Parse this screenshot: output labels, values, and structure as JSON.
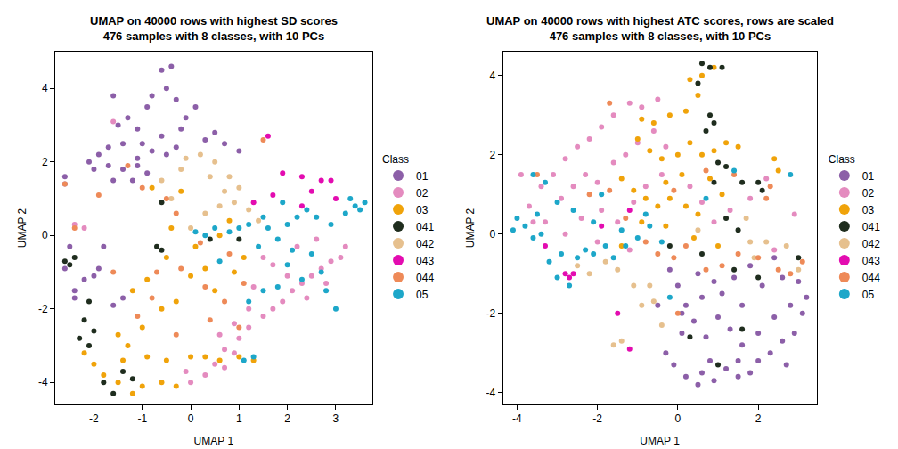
{
  "chart_data": [
    {
      "type": "scatter",
      "title": "UMAP on 40000 rows with highest SD scores\n476 samples with 8 classes, with 10 PCs",
      "x_label": "UMAP 1",
      "y_label": "UMAP 2",
      "legend_title": "Class",
      "marker": "circle",
      "grid": false,
      "xlim": [
        -2.8,
        3.75
      ],
      "ylim": [
        -4.6,
        5.0
      ],
      "xticks": [
        -2,
        -1,
        0,
        1,
        2,
        3
      ],
      "yticks": [
        -4,
        -2,
        0,
        2,
        4
      ],
      "series": [
        {
          "name": "01",
          "color": "#8C5FA8",
          "x": [
            -1.6,
            -1.3,
            -1.1,
            -1.5,
            -0.9,
            -0.6,
            -0.4,
            -0.5,
            -0.8,
            -0.3,
            -0.1,
            0.1,
            -0.2,
            -0.6,
            -1.0,
            -1.4,
            -1.7,
            -1.9,
            -2.1,
            -1.7,
            -1.4,
            -1.1,
            -0.8,
            -0.5,
            0.3,
            0.5,
            0.7,
            1.0,
            -1.2,
            -0.9,
            -1.6,
            -2.0,
            -2.6,
            -2.6,
            -2.5,
            -2.6,
            -2.4,
            -2.2,
            -2.0,
            -1.8,
            -2.4,
            -1.9,
            -1.4,
            -1.6,
            -1.1,
            -0.3
          ],
          "y": [
            3.8,
            3.2,
            2.9,
            3.0,
            3.5,
            4.5,
            4.6,
            4.0,
            3.8,
            3.7,
            3.2,
            3.5,
            2.9,
            2.7,
            2.5,
            2.5,
            2.4,
            2.2,
            2.0,
            1.9,
            1.8,
            2.1,
            2.3,
            2.2,
            2.6,
            2.8,
            2.5,
            2.3,
            1.5,
            1.7,
            1.5,
            1.8,
            1.6,
            1.4,
            -0.3,
            -0.9,
            -1.5,
            -1.2,
            -1.1,
            -0.3,
            -1.7,
            -0.9,
            -1.7,
            -1.9,
            1.9,
            2.4
          ]
        },
        {
          "name": "02",
          "color": "#E48BBF",
          "x": [
            0.0,
            -0.1,
            0.3,
            0.5,
            0.7,
            0.9,
            1.0,
            1.2,
            1.5,
            1.7,
            1.9,
            2.1,
            2.3,
            2.5,
            2.7,
            2.9,
            3.1,
            2.4,
            2.8,
            2.0,
            1.3,
            1.2,
            0.9,
            0.6,
            1.5,
            1.7,
            2.2,
            3.2,
            2.6,
            -2.4,
            -2.2,
            -1.6,
            0.7
          ],
          "y": [
            -4.0,
            -3.7,
            -3.8,
            -3.5,
            -3.6,
            -3.2,
            -2.8,
            -2.5,
            -2.2,
            -2.0,
            -1.8,
            -1.5,
            -1.3,
            -1.1,
            -0.9,
            -0.7,
            -0.6,
            -1.7,
            -1.3,
            -1.1,
            -1.4,
            -2.0,
            -2.4,
            -2.7,
            -0.6,
            -0.8,
            -0.3,
            -0.3,
            -0.1,
            0.3,
            0.2,
            3.1,
            -3.1
          ]
        },
        {
          "name": "03",
          "color": "#F0A30A",
          "x": [
            -2.2,
            -2.0,
            -1.8,
            -1.5,
            -1.2,
            -1.0,
            -0.6,
            -0.3,
            -1.4,
            -0.9,
            -0.5,
            0.0,
            0.3,
            0.6,
            1.0,
            1.3,
            -1.3,
            -1.0,
            -0.6,
            -0.3,
            -1.2,
            -0.9,
            -0.5,
            0.0,
            0.3,
            0.5,
            0.1,
            0.6,
            0.8,
            1.1,
            0.9,
            -0.4,
            -0.8,
            -0.2,
            -1.5
          ],
          "y": [
            -3.2,
            -3.5,
            -3.8,
            -4.0,
            -4.3,
            -4.1,
            -4.0,
            -4.1,
            -3.4,
            -3.3,
            -3.4,
            -3.3,
            -3.3,
            -3.4,
            -3.3,
            -3.4,
            -3.0,
            -2.5,
            -2.0,
            -1.8,
            -1.5,
            -1.2,
            -0.6,
            -1.1,
            -0.9,
            -1.5,
            -0.3,
            0.0,
            0.4,
            -0.6,
            -1.0,
            0.2,
            1.3,
            1.2,
            -2.7
          ]
        },
        {
          "name": "041",
          "color": "#1F2D1E",
          "x": [
            -2.6,
            -2.5,
            -2.4,
            -2.1,
            -2.2,
            -2.0,
            -2.1,
            -1.8,
            -1.6,
            -1.4,
            -1.2,
            -2.3,
            -0.6,
            -0.7,
            0.4,
            1.0,
            -0.6
          ],
          "y": [
            -0.7,
            -0.8,
            -0.6,
            -1.8,
            -2.3,
            -2.6,
            -3.0,
            -4.0,
            -4.3,
            -3.7,
            -3.9,
            -2.8,
            -0.4,
            -0.3,
            -0.1,
            -0.1,
            0.9
          ]
        },
        {
          "name": "042",
          "color": "#E6C08E",
          "x": [
            -0.1,
            0.2,
            0.5,
            0.8,
            1.0,
            0.7,
            0.9,
            1.2,
            0.4,
            -0.4,
            0.0,
            0.3,
            -0.2,
            0.6,
            1.4,
            -0.6
          ],
          "y": [
            2.1,
            2.2,
            2.0,
            1.6,
            1.3,
            1.2,
            0.9,
            0.7,
            1.6,
            1.0,
            0.2,
            0.6,
            1.8,
            0.8,
            0.4,
            1.5
          ]
        },
        {
          "name": "043",
          "color": "#E30CB0",
          "x": [
            1.6,
            1.9,
            2.3,
            2.5,
            2.7,
            2.9,
            1.7,
            2.3,
            3.0,
            1.3
          ],
          "y": [
            2.7,
            1.7,
            1.6,
            1.2,
            1.5,
            1.5,
            1.1,
            0.8,
            1.0,
            0.9
          ]
        },
        {
          "name": "044",
          "color": "#EE8A58",
          "x": [
            -2.6,
            -2.4,
            -1.3,
            -1.0,
            -0.5,
            -0.3,
            0.2,
            -0.2,
            -0.8,
            -1.1,
            0.3,
            0.7,
            1.0,
            0.8,
            -0.3,
            -1.6,
            -1.9,
            -0.7,
            1.5,
            1.1,
            0.4
          ],
          "y": [
            1.4,
            0.2,
            1.9,
            1.3,
            1.0,
            0.6,
            -0.2,
            -0.9,
            -1.7,
            -2.2,
            -1.4,
            -1.8,
            -2.5,
            -0.5,
            -2.7,
            -1.0,
            1.1,
            -1.0,
            2.6,
            -1.3,
            -2.3
          ]
        },
        {
          "name": "05",
          "color": "#1DA7C9",
          "x": [
            0.1,
            0.3,
            0.5,
            0.8,
            1.0,
            1.2,
            1.5,
            1.6,
            1.8,
            2.0,
            2.2,
            2.4,
            2.6,
            2.9,
            3.2,
            3.4,
            3.5,
            3.6,
            3.3,
            1.4,
            2.1,
            2.5,
            2.7,
            2.3,
            1.8,
            1.5,
            1.2,
            1.1,
            1.3,
            2.0,
            2.8,
            3.0,
            0.6,
            1.9
          ],
          "y": [
            0.1,
            0.0,
            0.2,
            0.1,
            0.2,
            0.3,
            0.5,
            0.2,
            -0.1,
            0.3,
            0.5,
            0.7,
            0.5,
            0.3,
            0.6,
            0.8,
            0.7,
            0.9,
            1.0,
            -0.3,
            -0.4,
            -0.5,
            -1.0,
            -1.2,
            -1.4,
            -1.5,
            -1.8,
            -3.4,
            -3.3,
            -0.8,
            -1.5,
            -2.0,
            -0.7,
            0.9
          ]
        }
      ]
    },
    {
      "type": "scatter",
      "title": "UMAP on 40000 rows with highest ATC scores, rows are scaled\n476 samples with 8 classes, with 10 PCs",
      "x_label": "UMAP 1",
      "y_label": "UMAP 2",
      "legend_title": "Class",
      "marker": "circle",
      "grid": false,
      "xlim": [
        -4.35,
        3.45
      ],
      "ylim": [
        -4.3,
        4.6
      ],
      "xticks": [
        -4,
        -2,
        0,
        2
      ],
      "yticks": [
        -4,
        -2,
        0,
        2,
        4
      ],
      "series": [
        {
          "name": "01",
          "color": "#8C5FA8",
          "x": [
            -0.3,
            -0.1,
            0.2,
            0.5,
            0.6,
            0.9,
            1.2,
            1.5,
            1.8,
            2.0,
            2.3,
            2.6,
            2.9,
            3.1,
            3.2,
            2.8,
            2.4,
            2.0,
            1.6,
            1.3,
            1.0,
            0.7,
            0.4,
            0.1,
            0.2,
            0.6,
            1.1,
            1.6,
            2.1,
            2.6,
            3.0,
            2.4,
            1.8,
            1.4,
            0.9,
            0.5,
            0.0,
            -0.5,
            -0.2,
            0.8,
            1.5,
            2.7,
            0.1
          ],
          "y": [
            -3.0,
            -3.3,
            -3.6,
            -3.8,
            -3.5,
            -3.7,
            -3.4,
            -3.6,
            -3.5,
            -3.2,
            -3.0,
            -2.7,
            -2.5,
            -2.0,
            -1.6,
            -1.8,
            -2.1,
            -2.5,
            -2.8,
            -2.4,
            -2.1,
            -2.6,
            -2.2,
            -2.5,
            -1.8,
            -1.6,
            -1.5,
            -1.8,
            -1.3,
            -1.1,
            -1.2,
            -0.6,
            -0.8,
            -1.1,
            -1.2,
            -1.0,
            -1.3,
            -1.8,
            -0.9,
            -3.2,
            -3.2,
            -3.3,
            -2.0
          ]
        },
        {
          "name": "02",
          "color": "#E48BBF",
          "x": [
            -3.4,
            -3.1,
            -2.8,
            -2.5,
            -2.2,
            -1.9,
            -1.6,
            -1.2,
            -0.9,
            -0.5,
            -2.9,
            -2.6,
            -2.3,
            -2.0,
            -1.6,
            -1.3,
            -1.0,
            -0.6,
            -0.3,
            -3.7,
            -3.3,
            -2.8,
            -2.4,
            -1.9,
            -1.5,
            -1.1,
            -0.8,
            -0.4,
            0.3,
            0.6,
            0.9,
            1.3,
            1.8,
            2.2,
            -3.9,
            -3.6,
            -1.2,
            -2.0,
            2.4,
            2.9
          ],
          "y": [
            1.2,
            1.5,
            1.9,
            2.2,
            2.4,
            2.7,
            3.0,
            3.3,
            3.2,
            3.4,
            0.9,
            1.2,
            1.5,
            1.3,
            1.8,
            2.0,
            2.3,
            2.6,
            2.2,
            0.7,
            0.3,
            0.0,
            0.4,
            0.6,
            0.3,
            0.8,
            1.2,
            1.5,
            1.2,
            0.8,
            0.3,
            0.6,
            0.9,
            1.4,
            1.5,
            0.3,
            -0.4,
            -0.2,
            -0.4,
            0.5
          ]
        },
        {
          "name": "03",
          "color": "#F0A30A",
          "x": [
            0.3,
            0.6,
            0.9,
            0.5,
            0.2,
            -0.2,
            -0.6,
            -0.9,
            -1.0,
            -0.7,
            -0.4,
            0.0,
            0.3,
            0.6,
            0.9,
            1.2,
            1.5,
            -1.4,
            -1.1,
            -0.8,
            -0.5,
            -0.2,
            0.2,
            0.5,
            0.1,
            -0.3,
            0.8,
            1.1,
            -0.9,
            -0.3,
            0.4,
            1.0,
            -1.4,
            2.4,
            2.5
          ],
          "y": [
            3.9,
            4.0,
            4.2,
            3.5,
            3.1,
            3.0,
            2.8,
            2.9,
            2.4,
            2.1,
            1.9,
            2.0,
            2.3,
            2.0,
            2.1,
            2.3,
            2.2,
            1.4,
            1.1,
            0.9,
            0.7,
            0.9,
            0.7,
            0.5,
            1.5,
            1.3,
            1.4,
            1.0,
            0.3,
            0.2,
            -0.1,
            -0.3,
            -0.3,
            1.9,
            1.6
          ]
        },
        {
          "name": "041",
          "color": "#1F2D1E",
          "x": [
            0.6,
            0.8,
            1.1,
            0.5,
            0.8,
            0.9,
            0.7,
            1.0,
            1.2,
            0.9,
            1.6,
            2.0,
            2.1,
            1.2,
            1.5,
            1.4,
            0.6,
            -0.2,
            0.3,
            1.6,
            3.0,
            2.0,
            1.0
          ],
          "y": [
            4.3,
            4.2,
            4.2,
            3.8,
            3.0,
            2.8,
            2.6,
            1.8,
            1.7,
            1.3,
            1.3,
            1.3,
            1.1,
            0.4,
            0.1,
            -0.9,
            -0.5,
            -0.3,
            -2.6,
            -2.4,
            -0.6,
            -1.1,
            -3.3
          ]
        },
        {
          "name": "042",
          "color": "#E6C08E",
          "x": [
            -2.2,
            -1.8,
            -1.5,
            -1.1,
            -0.9,
            -0.7,
            -1.4,
            -1.6,
            -0.4,
            -0.6,
            1.8,
            2.2,
            2.7,
            3.0,
            1.7,
            0.5,
            -2.5,
            1.9
          ],
          "y": [
            -1.0,
            -0.7,
            -0.9,
            -1.3,
            -1.8,
            -1.3,
            -2.7,
            -2.8,
            -2.3,
            -1.7,
            -0.2,
            -0.2,
            -0.3,
            -0.9,
            0.4,
            0.1,
            -0.8,
            -0.6
          ]
        },
        {
          "name": "043",
          "color": "#E30CB0",
          "x": [
            -2.8,
            -2.7,
            -2.6,
            -1.5,
            -1.2,
            -3.3,
            -1.9,
            -1.2
          ],
          "y": [
            -1.0,
            -1.1,
            -1.0,
            -2.0,
            -2.9,
            -0.3,
            0.2,
            0.6
          ]
        },
        {
          "name": "044",
          "color": "#EE8A58",
          "x": [
            -3.5,
            -2.2,
            -1.7,
            -1.3,
            -0.8,
            -0.5,
            -0.1,
            0.2,
            0.7,
            1.1,
            1.5,
            2.0,
            2.5,
            2.8,
            3.1,
            2.2,
            1.4,
            0.7,
            -0.1,
            -1.7,
            0.0,
            2.3
          ],
          "y": [
            1.5,
            1.0,
            1.1,
            0.4,
            -0.2,
            -0.5,
            -0.6,
            -0.3,
            -0.9,
            -0.8,
            -0.5,
            -0.6,
            -0.9,
            -1.0,
            -0.7,
            0.9,
            1.5,
            1.6,
            1.1,
            3.3,
            -2.0,
            1.2
          ]
        },
        {
          "name": "05",
          "color": "#1DA7C9",
          "x": [
            -4.1,
            -4.0,
            -3.8,
            -3.6,
            -3.4,
            -3.6,
            -3.3,
            -3.0,
            -3.2,
            -3.0,
            -2.7,
            -2.5,
            -2.3,
            -2.1,
            -1.8,
            -1.6,
            -1.3,
            -1.0,
            -0.7,
            -0.4,
            -2.9,
            -3.5,
            -2.6,
            -2.1,
            -1.4,
            -0.2,
            0.7,
            1.4,
            2.8,
            -0.8,
            -1.9
          ],
          "y": [
            0.1,
            0.4,
            0.2,
            -0.1,
            0.0,
            1.5,
            1.3,
            0.8,
            -0.7,
            -1.1,
            -1.3,
            -0.6,
            -0.4,
            -0.5,
            -0.3,
            -0.6,
            -0.3,
            -0.1,
            0.2,
            -0.2,
            -0.5,
            0.5,
            0.6,
            0.3,
            0.1,
            -1.6,
            0.9,
            1.6,
            1.5,
            0.5,
            1.0
          ]
        }
      ]
    }
  ]
}
